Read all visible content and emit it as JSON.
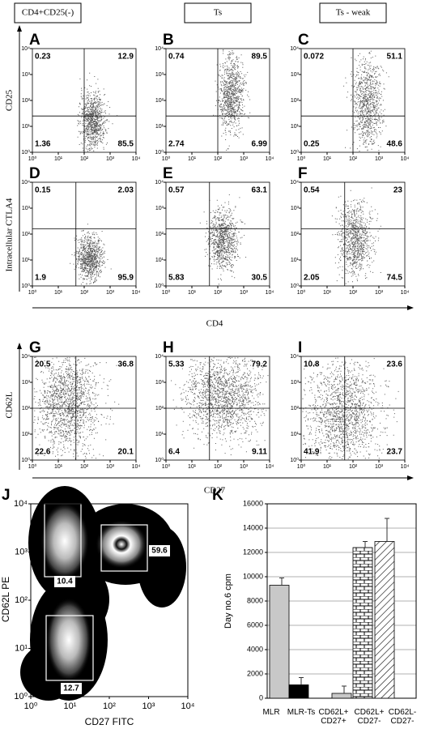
{
  "column_headers": [
    "CD4+CD25(-)",
    "Ts",
    "Ts - weak"
  ],
  "axis_labels": {
    "cd25": "CD25",
    "ctla4": "Intracellular CTLA4",
    "cd4": "CD4",
    "cd62l": "CD62L",
    "cd27": "CD27"
  },
  "log_ticks": [
    {
      "value": 1,
      "label": "10⁰"
    },
    {
      "value": 10,
      "label": "10¹"
    },
    {
      "value": 100,
      "label": "10²"
    },
    {
      "value": 1000,
      "label": "10³"
    },
    {
      "value": 10000,
      "label": "10⁴"
    }
  ],
  "panels": [
    {
      "letter": "A",
      "ul": 0.23,
      "ur": 12.9,
      "ll": 1.36,
      "lr": 85.5
    },
    {
      "letter": "B",
      "ul": 0.74,
      "ur": 89.5,
      "ll": 2.74,
      "lr": 6.99
    },
    {
      "letter": "C",
      "ul": 0.072,
      "ur": 51.1,
      "ll": 0.25,
      "lr": 48.6
    },
    {
      "letter": "D",
      "ul": 0.15,
      "ur": 2.03,
      "ll": 1.9,
      "lr": 95.9
    },
    {
      "letter": "E",
      "ul": 0.57,
      "ur": 63.1,
      "ll": 5.83,
      "lr": 30.5
    },
    {
      "letter": "F",
      "ul": 0.54,
      "ur": 23,
      "ll": 2.05,
      "lr": 74.5
    },
    {
      "letter": "G",
      "ul": 20.5,
      "ur": 36.8,
      "ll": 22.6,
      "lr": 20.1
    },
    {
      "letter": "H",
      "ul": 5.33,
      "ur": 79.2,
      "ll": 6.4,
      "lr": 9.11
    },
    {
      "letter": "I",
      "ul": 10.8,
      "ur": 23.6,
      "ll": 41.9,
      "lr": 23.7
    }
  ],
  "panel_j": {
    "letter": "J",
    "xlabel": "CD27 FITC",
    "ylabel": "CD62L PE",
    "gates": [
      59.6,
      10.4,
      12.7
    ]
  },
  "chart_data": {
    "type": "bar",
    "panel_label": "K",
    "ylabel": "Day no.6 cpm",
    "categories": [
      "MLR",
      "MLR-Ts",
      "CD62L+ CD27+",
      "CD62L+ CD27-",
      "CD62L- CD27-"
    ],
    "values": [
      9300,
      1100,
      400,
      12400,
      12900
    ],
    "errors": [
      600,
      600,
      600,
      500,
      1900
    ],
    "colors": [
      "#c8c8c8",
      "#000000",
      "#c8c8c8",
      "#ffffff",
      "#ffffff"
    ],
    "patterns": [
      "solid",
      "solid",
      "solid",
      "brick",
      "diagonal"
    ],
    "ylim": [
      0,
      16000
    ],
    "yticks": [
      0,
      2000,
      4000,
      6000,
      8000,
      10000,
      12000,
      14000,
      16000
    ],
    "grid": true
  }
}
